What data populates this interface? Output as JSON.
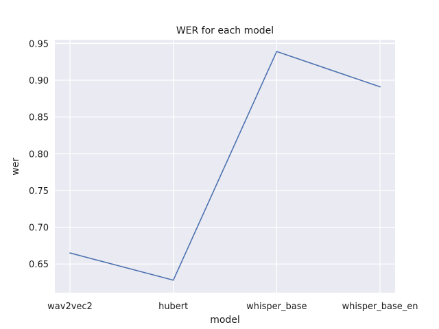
{
  "chart_data": {
    "type": "line",
    "title": "WER for each model",
    "xlabel": "model",
    "ylabel": "wer",
    "categories": [
      "wav2vec2",
      "hubert",
      "whisper_base",
      "whisper_base_en"
    ],
    "series": [
      {
        "values": [
          0.665,
          0.628,
          0.939,
          0.891
        ],
        "color": "#4c72b0"
      }
    ],
    "ylim": [
      0.611,
      0.955
    ],
    "yticks": [
      0.65,
      0.7,
      0.75,
      0.8,
      0.85,
      0.9,
      0.95
    ],
    "ytick_labels": [
      "0.65",
      "0.70",
      "0.75",
      "0.80",
      "0.85",
      "0.90",
      "0.95"
    ],
    "grid": true,
    "background_color": "#eaeaf2",
    "grid_color": "#ffffff"
  }
}
